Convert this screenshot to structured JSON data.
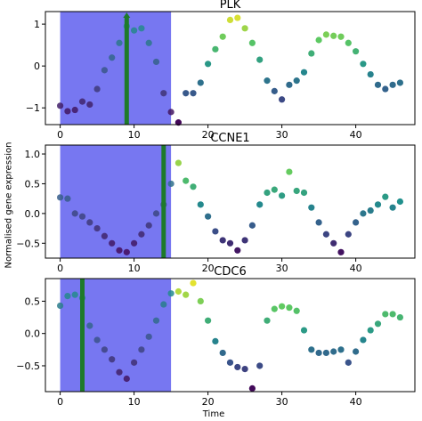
{
  "figure": {
    "ylabel": "Normalised gene expression",
    "xlabel": "Time"
  },
  "colors": {
    "window": "#7070f0",
    "marker_line": "#1e7a2a",
    "point_cmap": [
      "#440154",
      "#3b528b",
      "#21908d",
      "#5dc962",
      "#fde725"
    ]
  },
  "chart_data": [
    {
      "type": "scatter",
      "title": "PLK",
      "xlim": [
        -2,
        48
      ],
      "ylim": [
        -1.4,
        1.3
      ],
      "xticks": [
        0,
        10,
        20,
        30,
        40
      ],
      "yticks": [
        -1,
        0,
        1
      ],
      "xtick_labels": [
        "0",
        "10",
        "20",
        "30",
        "40"
      ],
      "ytick_labels": [
        "−1",
        "0",
        "1"
      ],
      "window": [
        0,
        15
      ],
      "marker": 9,
      "marker_arrow": true,
      "x": [
        0,
        1,
        2,
        3,
        4,
        5,
        6,
        7,
        8,
        9,
        10,
        11,
        12,
        13,
        14,
        15,
        16,
        17,
        18,
        19,
        20,
        21,
        22,
        23,
        24,
        25,
        26,
        27,
        28,
        29,
        30,
        31,
        32,
        33,
        34,
        35,
        36,
        37,
        38,
        39,
        40,
        41,
        42,
        43,
        44,
        45,
        46
      ],
      "y": [
        -0.95,
        -1.08,
        -1.05,
        -0.85,
        -0.92,
        -0.55,
        -0.1,
        0.2,
        0.55,
        0.95,
        0.85,
        0.9,
        0.55,
        0.1,
        -0.65,
        -1.1,
        -1.35,
        -0.65,
        -0.65,
        -0.4,
        0.05,
        0.4,
        0.7,
        1.1,
        1.15,
        0.9,
        0.55,
        0.15,
        -0.35,
        -0.6,
        -0.8,
        -0.45,
        -0.35,
        -0.15,
        0.3,
        0.62,
        0.75,
        0.72,
        0.7,
        0.55,
        0.35,
        0.05,
        -0.2,
        -0.45,
        -0.55,
        -0.45,
        -0.4
      ]
    },
    {
      "type": "scatter",
      "title": "CCNE1",
      "xlim": [
        -2,
        48
      ],
      "ylim": [
        -0.75,
        1.15
      ],
      "xticks": [
        0,
        10,
        20,
        30,
        40
      ],
      "yticks": [
        -0.5,
        0.0,
        0.5,
        1.0
      ],
      "xtick_labels": [
        "0",
        "10",
        "20",
        "30",
        "40"
      ],
      "ytick_labels": [
        "−0.5",
        "0.0",
        "0.5",
        "1.0"
      ],
      "window": [
        0,
        15
      ],
      "marker": 14,
      "marker_arrow": false,
      "x": [
        0,
        1,
        2,
        3,
        4,
        5,
        6,
        7,
        8,
        9,
        10,
        11,
        12,
        13,
        14,
        15,
        16,
        17,
        18,
        19,
        20,
        21,
        22,
        23,
        24,
        25,
        26,
        27,
        28,
        29,
        30,
        31,
        32,
        33,
        34,
        35,
        36,
        37,
        38,
        39,
        40,
        41,
        42,
        43,
        44,
        45,
        46
      ],
      "y": [
        0.27,
        0.25,
        0.0,
        -0.05,
        -0.15,
        -0.25,
        -0.38,
        -0.5,
        -0.62,
        -0.65,
        -0.5,
        -0.35,
        -0.2,
        0.0,
        0.15,
        0.5,
        0.85,
        0.55,
        0.45,
        0.15,
        -0.05,
        -0.3,
        -0.45,
        -0.5,
        -0.62,
        -0.45,
        -0.2,
        0.15,
        0.35,
        0.4,
        0.3,
        0.7,
        0.38,
        0.35,
        0.1,
        -0.15,
        -0.35,
        -0.5,
        -0.65,
        -0.35,
        -0.15,
        0.0,
        0.05,
        0.15,
        0.28,
        0.1,
        0.2
      ]
    },
    {
      "type": "scatter",
      "title": "CDC6",
      "xlim": [
        -2,
        48
      ],
      "ylim": [
        -0.9,
        0.85
      ],
      "xticks": [
        0,
        10,
        20,
        30,
        40
      ],
      "yticks": [
        -0.5,
        0.0,
        0.5
      ],
      "xtick_labels": [
        "0",
        "10",
        "20",
        "30",
        "40"
      ],
      "ytick_labels": [
        "−0.5",
        "0.0",
        "0.5"
      ],
      "window": [
        0,
        15
      ],
      "marker": 3,
      "marker_arrow": false,
      "x": [
        0,
        1,
        2,
        3,
        4,
        5,
        6,
        7,
        8,
        9,
        10,
        11,
        12,
        13,
        14,
        15,
        16,
        17,
        18,
        19,
        20,
        21,
        22,
        23,
        24,
        25,
        26,
        27,
        28,
        29,
        30,
        31,
        32,
        33,
        34,
        35,
        36,
        37,
        38,
        39,
        40,
        41,
        42,
        43,
        44,
        45,
        46
      ],
      "y": [
        0.43,
        0.58,
        0.6,
        0.55,
        0.12,
        -0.1,
        -0.25,
        -0.4,
        -0.6,
        -0.7,
        -0.45,
        -0.25,
        -0.05,
        0.2,
        0.45,
        0.62,
        0.65,
        0.6,
        0.78,
        0.5,
        0.2,
        -0.12,
        -0.3,
        -0.45,
        -0.52,
        -0.55,
        -0.85,
        -0.5,
        0.2,
        0.38,
        0.42,
        0.4,
        0.35,
        0.05,
        -0.25,
        -0.3,
        -0.3,
        -0.28,
        -0.25,
        -0.45,
        -0.28,
        -0.1,
        0.05,
        0.15,
        0.3,
        0.3,
        0.25
      ]
    }
  ]
}
